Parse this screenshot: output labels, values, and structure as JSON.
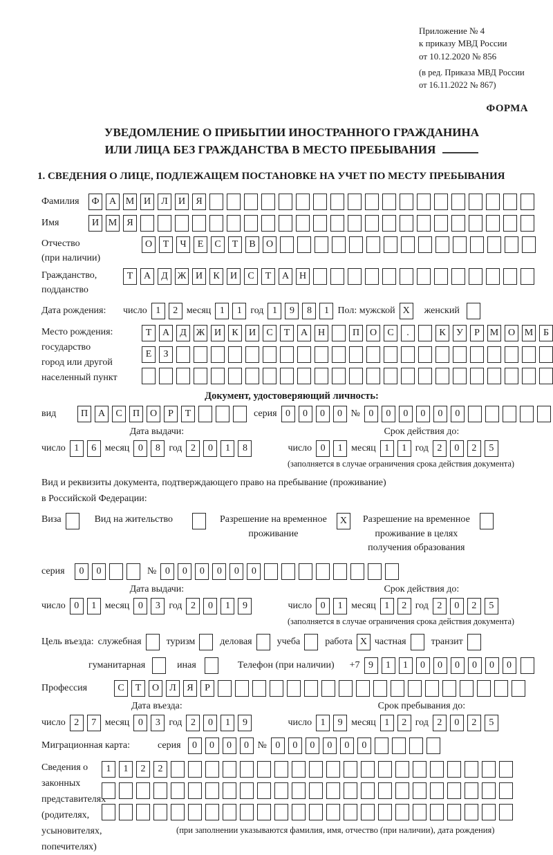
{
  "header": {
    "appendix_lines": [
      "Приложение № 4",
      "к приказу МВД России",
      "от 10.12.2020 № 856"
    ],
    "amendment_lines": [
      "(в ред. Приказа МВД России",
      "от 16.11.2022 № 867)"
    ],
    "form_label": "ФОРМА"
  },
  "title": {
    "line1": "УВЕДОМЛЕНИЕ О ПРИБЫТИИ ИНОСТРАННОГО ГРАЖДАНИНА",
    "line2": "ИЛИ ЛИЦА БЕЗ ГРАЖДАНСТВА В МЕСТО ПРЕБЫВАНИЯ"
  },
  "section1_title": "1. СВЕДЕНИЯ О ЛИЦЕ, ПОДЛЕЖАЩЕМ ПОСТАНОВКЕ НА УЧЕТ ПО МЕСТУ ПРЕБЫВАНИЯ",
  "labels": {
    "surname": "Фамилия",
    "name": "Имя",
    "patronymic": "Отчество",
    "patronymic_note": "(при наличии)",
    "citizenship1": "Гражданство,",
    "citizenship2": "подданство",
    "birth_date": "Дата рождения:",
    "day": "число",
    "month": "месяц",
    "year": "год",
    "sex": "Пол: мужской",
    "female": "женский",
    "birthplace1": "Место рождения:",
    "birthplace2": "государство",
    "birthplace3": "город или другой",
    "birthplace4": "населенный пункт",
    "identity_doc_header": "Документ, удостоверяющий личность:",
    "doc_type": "вид",
    "series": "серия",
    "number_sign": "№",
    "issue_date": "Дата выдачи:",
    "valid_until": "Срок действия до:",
    "restriction_note": "(заполняется в случае ограничения срока действия документа)",
    "residence_doc_line1": "Вид и реквизиты документа, подтверждающего право на пребывание (проживание)",
    "residence_doc_line2": "в Российской Федерации:",
    "visa": "Виза",
    "residence_permit": "Вид на жительство",
    "temp_residence_l1": "Разрешение на временное",
    "temp_residence_l2": "проживание",
    "education_l1": "Разрешение на временное",
    "education_l2": "проживание в целях",
    "education_l3": "получения образования",
    "purpose": "Цель въезда:",
    "p_official": "служебная",
    "p_tourism": "туризм",
    "p_business": "деловая",
    "p_study": "учеба",
    "p_work": "работа",
    "p_private": "частная",
    "p_transit": "транзит",
    "p_humanitarian": "гуманитарная",
    "p_other": "иная",
    "phone": "Телефон (при наличии)",
    "profession": "Профессия",
    "entry_date": "Дата въезда:",
    "stay_until": "Срок пребывания до:",
    "migration_card": "Миграционная карта:",
    "rep1": "Сведения о",
    "rep2": "законных",
    "rep3": "представителях",
    "rep4": "(родителях,",
    "rep5": "усыновителях,",
    "rep6": "попечителях)",
    "footer_note": "(при заполнении указываются фамилия, имя, отчество (при наличии), дата рождения)"
  },
  "fields": {
    "surname": "ФАМИЛИЯ",
    "name": "ИМЯ",
    "patronymic": "ОТЧЕСТВО",
    "citizenship": "ТАДЖИКИСТАН",
    "birth_day": "12",
    "birth_month": "11",
    "birth_year": "1981",
    "male_cb": "X",
    "female_cb": "",
    "birthplace_row1": "ТАДЖИКИСТАН ПОС. КУРМОМБ",
    "birthplace_row2": "ЕЗ",
    "birthplace_row3": "",
    "passport_type": "ПАСПОРТ",
    "passport_series": "0000",
    "passport_number": "000000",
    "passport_issue_day": "16",
    "passport_issue_month": "08",
    "passport_issue_year": "2018",
    "passport_valid_day": "01",
    "passport_valid_month": "11",
    "passport_valid_year": "2025",
    "visa_cb": "",
    "residence_permit_cb": "",
    "temp_residence_cb": "X",
    "education_cb": "",
    "permit_series": "00",
    "permit_number": "000000",
    "permit_issue_day": "01",
    "permit_issue_month": "03",
    "permit_issue_year": "2019",
    "permit_valid_day": "01",
    "permit_valid_month": "12",
    "permit_valid_year": "2025",
    "purpose_official_cb": "",
    "purpose_tourism_cb": "",
    "purpose_business_cb": "",
    "purpose_study_cb": "",
    "purpose_work_cb": "X",
    "purpose_private_cb": "",
    "purpose_transit_cb": "",
    "purpose_humanitarian_cb": "",
    "purpose_other_cb": "",
    "phone_prefix": "+7",
    "phone_digits": "911000000",
    "phone_extra": "",
    "profession": "СТОЛЯР",
    "entry_day": "27",
    "entry_month": "03",
    "entry_year": "2019",
    "stay_day": "19",
    "stay_month": "12",
    "stay_year": "2025",
    "mig_series": "0000",
    "mig_number": "000000",
    "rep_row1": "1122",
    "rep_row2": "",
    "rep_row3": ""
  }
}
